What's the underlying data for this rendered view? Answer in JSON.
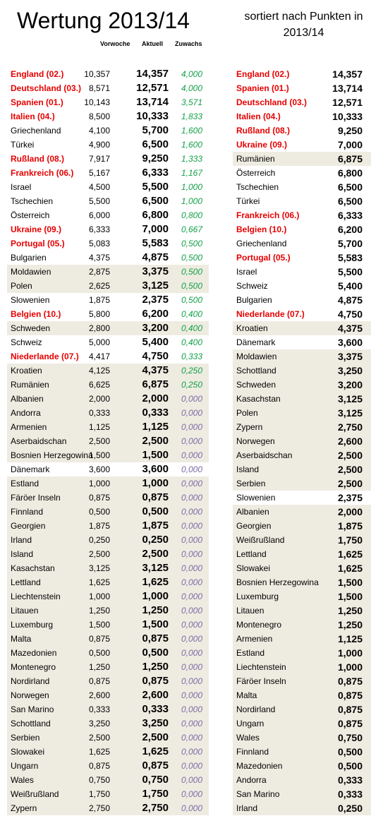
{
  "title": "Wertung 2013/14",
  "subtitle": "sortiert nach Punkten in 2013/14",
  "headers": {
    "prev": "Vorwoche",
    "curr": "Aktuell",
    "growth": "Zuwachs"
  },
  "left_rows": [
    {
      "name": "England (02.)",
      "prev": "10,357",
      "curr": "14,357",
      "growth": "4,000",
      "hl": true,
      "shade": false
    },
    {
      "name": "Deutschland (03.)",
      "prev": "8,571",
      "curr": "12,571",
      "growth": "4,000",
      "hl": true,
      "shade": false
    },
    {
      "name": "Spanien (01.)",
      "prev": "10,143",
      "curr": "13,714",
      "growth": "3,571",
      "hl": true,
      "shade": false
    },
    {
      "name": "Italien (04.)",
      "prev": "8,500",
      "curr": "10,333",
      "growth": "1,833",
      "hl": true,
      "shade": false
    },
    {
      "name": "Griechenland",
      "prev": "4,100",
      "curr": "5,700",
      "growth": "1,600",
      "hl": false,
      "shade": false
    },
    {
      "name": "Türkei",
      "prev": "4,900",
      "curr": "6,500",
      "growth": "1,600",
      "hl": false,
      "shade": false
    },
    {
      "name": "Rußland (08.)",
      "prev": "7,917",
      "curr": "9,250",
      "growth": "1,333",
      "hl": true,
      "shade": false
    },
    {
      "name": "Frankreich (06.)",
      "prev": "5,167",
      "curr": "6,333",
      "growth": "1,167",
      "hl": true,
      "shade": false
    },
    {
      "name": "Israel",
      "prev": "4,500",
      "curr": "5,500",
      "growth": "1,000",
      "hl": false,
      "shade": false
    },
    {
      "name": "Tschechien",
      "prev": "5,500",
      "curr": "6,500",
      "growth": "1,000",
      "hl": false,
      "shade": false
    },
    {
      "name": "Österreich",
      "prev": "6,000",
      "curr": "6,800",
      "growth": "0,800",
      "hl": false,
      "shade": false
    },
    {
      "name": "Ukraine (09.)",
      "prev": "6,333",
      "curr": "7,000",
      "growth": "0,667",
      "hl": true,
      "shade": false
    },
    {
      "name": "Portugal (05.)",
      "prev": "5,083",
      "curr": "5,583",
      "growth": "0,500",
      "hl": true,
      "shade": false
    },
    {
      "name": "Bulgarien",
      "prev": "4,375",
      "curr": "4,875",
      "growth": "0,500",
      "hl": false,
      "shade": false
    },
    {
      "name": "Moldawien",
      "prev": "2,875",
      "curr": "3,375",
      "growth": "0,500",
      "hl": false,
      "shade": true
    },
    {
      "name": "Polen",
      "prev": "2,625",
      "curr": "3,125",
      "growth": "0,500",
      "hl": false,
      "shade": true
    },
    {
      "name": "Slowenien",
      "prev": "1,875",
      "curr": "2,375",
      "growth": "0,500",
      "hl": false,
      "shade": false
    },
    {
      "name": "Belgien (10.)",
      "prev": "5,800",
      "curr": "6,200",
      "growth": "0,400",
      "hl": true,
      "shade": false
    },
    {
      "name": "Schweden",
      "prev": "2,800",
      "curr": "3,200",
      "growth": "0,400",
      "hl": false,
      "shade": true
    },
    {
      "name": "Schweiz",
      "prev": "5,000",
      "curr": "5,400",
      "growth": "0,400",
      "hl": false,
      "shade": false
    },
    {
      "name": "Niederlande (07.)",
      "prev": "4,417",
      "curr": "4,750",
      "growth": "0,333",
      "hl": true,
      "shade": false
    },
    {
      "name": "Kroatien",
      "prev": "4,125",
      "curr": "4,375",
      "growth": "0,250",
      "hl": false,
      "shade": true
    },
    {
      "name": "Rumänien",
      "prev": "6,625",
      "curr": "6,875",
      "growth": "0,250",
      "hl": false,
      "shade": true
    },
    {
      "name": "Albanien",
      "prev": "2,000",
      "curr": "2,000",
      "growth": "0,000",
      "hl": false,
      "shade": true
    },
    {
      "name": "Andorra",
      "prev": "0,333",
      "curr": "0,333",
      "growth": "0,000",
      "hl": false,
      "shade": true
    },
    {
      "name": "Armenien",
      "prev": "1,125",
      "curr": "1,125",
      "growth": "0,000",
      "hl": false,
      "shade": true
    },
    {
      "name": "Aserbaidschan",
      "prev": "2,500",
      "curr": "2,500",
      "growth": "0,000",
      "hl": false,
      "shade": true
    },
    {
      "name": "Bosnien Herzegowina",
      "prev": "1,500",
      "curr": "1,500",
      "growth": "0,000",
      "hl": false,
      "shade": true
    },
    {
      "name": "Dänemark",
      "prev": "3,600",
      "curr": "3,600",
      "growth": "0,000",
      "hl": false,
      "shade": false
    },
    {
      "name": "Estland",
      "prev": "1,000",
      "curr": "1,000",
      "growth": "0,000",
      "hl": false,
      "shade": true
    },
    {
      "name": "Färöer Inseln",
      "prev": "0,875",
      "curr": "0,875",
      "growth": "0,000",
      "hl": false,
      "shade": true
    },
    {
      "name": "Finnland",
      "prev": "0,500",
      "curr": "0,500",
      "growth": "0,000",
      "hl": false,
      "shade": true
    },
    {
      "name": "Georgien",
      "prev": "1,875",
      "curr": "1,875",
      "growth": "0,000",
      "hl": false,
      "shade": true
    },
    {
      "name": "Irland",
      "prev": "0,250",
      "curr": "0,250",
      "growth": "0,000",
      "hl": false,
      "shade": true
    },
    {
      "name": "Island",
      "prev": "2,500",
      "curr": "2,500",
      "growth": "0,000",
      "hl": false,
      "shade": true
    },
    {
      "name": "Kasachstan",
      "prev": "3,125",
      "curr": "3,125",
      "growth": "0,000",
      "hl": false,
      "shade": true
    },
    {
      "name": "Lettland",
      "prev": "1,625",
      "curr": "1,625",
      "growth": "0,000",
      "hl": false,
      "shade": true
    },
    {
      "name": "Liechtenstein",
      "prev": "1,000",
      "curr": "1,000",
      "growth": "0,000",
      "hl": false,
      "shade": true
    },
    {
      "name": "Litauen",
      "prev": "1,250",
      "curr": "1,250",
      "growth": "0,000",
      "hl": false,
      "shade": true
    },
    {
      "name": "Luxemburg",
      "prev": "1,500",
      "curr": "1,500",
      "growth": "0,000",
      "hl": false,
      "shade": true
    },
    {
      "name": "Malta",
      "prev": "0,875",
      "curr": "0,875",
      "growth": "0,000",
      "hl": false,
      "shade": true
    },
    {
      "name": "Mazedonien",
      "prev": "0,500",
      "curr": "0,500",
      "growth": "0,000",
      "hl": false,
      "shade": true
    },
    {
      "name": "Montenegro",
      "prev": "1,250",
      "curr": "1,250",
      "growth": "0,000",
      "hl": false,
      "shade": true
    },
    {
      "name": "Nordirland",
      "prev": "0,875",
      "curr": "0,875",
      "growth": "0,000",
      "hl": false,
      "shade": true
    },
    {
      "name": "Norwegen",
      "prev": "2,600",
      "curr": "2,600",
      "growth": "0,000",
      "hl": false,
      "shade": true
    },
    {
      "name": "San Marino",
      "prev": "0,333",
      "curr": "0,333",
      "growth": "0,000",
      "hl": false,
      "shade": true
    },
    {
      "name": "Schottland",
      "prev": "3,250",
      "curr": "3,250",
      "growth": "0,000",
      "hl": false,
      "shade": true
    },
    {
      "name": "Serbien",
      "prev": "2,500",
      "curr": "2,500",
      "growth": "0,000",
      "hl": false,
      "shade": true
    },
    {
      "name": "Slowakei",
      "prev": "1,625",
      "curr": "1,625",
      "growth": "0,000",
      "hl": false,
      "shade": true
    },
    {
      "name": "Ungarn",
      "prev": "0,875",
      "curr": "0,875",
      "growth": "0,000",
      "hl": false,
      "shade": true
    },
    {
      "name": "Wales",
      "prev": "0,750",
      "curr": "0,750",
      "growth": "0,000",
      "hl": false,
      "shade": true
    },
    {
      "name": "Weißrußland",
      "prev": "1,750",
      "curr": "1,750",
      "growth": "0,000",
      "hl": false,
      "shade": true
    },
    {
      "name": "Zypern",
      "prev": "2,750",
      "curr": "2,750",
      "growth": "0,000",
      "hl": false,
      "shade": true
    }
  ],
  "right_rows": [
    {
      "name": "England (02.)",
      "curr": "14,357",
      "hl": true,
      "shade": false
    },
    {
      "name": "Spanien (01.)",
      "curr": "13,714",
      "hl": true,
      "shade": false
    },
    {
      "name": "Deutschland (03.)",
      "curr": "12,571",
      "hl": true,
      "shade": false
    },
    {
      "name": "Italien (04.)",
      "curr": "10,333",
      "hl": true,
      "shade": false
    },
    {
      "name": "Rußland (08.)",
      "curr": "9,250",
      "hl": true,
      "shade": false
    },
    {
      "name": "Ukraine (09.)",
      "curr": "7,000",
      "hl": true,
      "shade": false
    },
    {
      "name": "Rumänien",
      "curr": "6,875",
      "hl": false,
      "shade": true
    },
    {
      "name": "Österreich",
      "curr": "6,800",
      "hl": false,
      "shade": false
    },
    {
      "name": "Tschechien",
      "curr": "6,500",
      "hl": false,
      "shade": false
    },
    {
      "name": "Türkei",
      "curr": "6,500",
      "hl": false,
      "shade": false
    },
    {
      "name": "Frankreich (06.)",
      "curr": "6,333",
      "hl": true,
      "shade": false
    },
    {
      "name": "Belgien (10.)",
      "curr": "6,200",
      "hl": true,
      "shade": false
    },
    {
      "name": "Griechenland",
      "curr": "5,700",
      "hl": false,
      "shade": false
    },
    {
      "name": "Portugal (05.)",
      "curr": "5,583",
      "hl": true,
      "shade": false
    },
    {
      "name": "Israel",
      "curr": "5,500",
      "hl": false,
      "shade": false
    },
    {
      "name": "Schweiz",
      "curr": "5,400",
      "hl": false,
      "shade": false
    },
    {
      "name": "Bulgarien",
      "curr": "4,875",
      "hl": false,
      "shade": false
    },
    {
      "name": "Niederlande (07.)",
      "curr": "4,750",
      "hl": true,
      "shade": false
    },
    {
      "name": "Kroatien",
      "curr": "4,375",
      "hl": false,
      "shade": true
    },
    {
      "name": "Dänemark",
      "curr": "3,600",
      "hl": false,
      "shade": false
    },
    {
      "name": "Moldawien",
      "curr": "3,375",
      "hl": false,
      "shade": true
    },
    {
      "name": "Schottland",
      "curr": "3,250",
      "hl": false,
      "shade": true
    },
    {
      "name": "Schweden",
      "curr": "3,200",
      "hl": false,
      "shade": true
    },
    {
      "name": "Kasachstan",
      "curr": "3,125",
      "hl": false,
      "shade": true
    },
    {
      "name": "Polen",
      "curr": "3,125",
      "hl": false,
      "shade": true
    },
    {
      "name": "Zypern",
      "curr": "2,750",
      "hl": false,
      "shade": true
    },
    {
      "name": "Norwegen",
      "curr": "2,600",
      "hl": false,
      "shade": true
    },
    {
      "name": "Aserbaidschan",
      "curr": "2,500",
      "hl": false,
      "shade": true
    },
    {
      "name": "Island",
      "curr": "2,500",
      "hl": false,
      "shade": true
    },
    {
      "name": "Serbien",
      "curr": "2,500",
      "hl": false,
      "shade": true
    },
    {
      "name": "Slowenien",
      "curr": "2,375",
      "hl": false,
      "shade": false
    },
    {
      "name": "Albanien",
      "curr": "2,000",
      "hl": false,
      "shade": true
    },
    {
      "name": "Georgien",
      "curr": "1,875",
      "hl": false,
      "shade": true
    },
    {
      "name": "Weißrußland",
      "curr": "1,750",
      "hl": false,
      "shade": true
    },
    {
      "name": "Lettland",
      "curr": "1,625",
      "hl": false,
      "shade": true
    },
    {
      "name": "Slowakei",
      "curr": "1,625",
      "hl": false,
      "shade": true
    },
    {
      "name": "Bosnien Herzegowina",
      "curr": "1,500",
      "hl": false,
      "shade": true
    },
    {
      "name": "Luxemburg",
      "curr": "1,500",
      "hl": false,
      "shade": true
    },
    {
      "name": "Litauen",
      "curr": "1,250",
      "hl": false,
      "shade": true
    },
    {
      "name": "Montenegro",
      "curr": "1,250",
      "hl": false,
      "shade": true
    },
    {
      "name": "Armenien",
      "curr": "1,125",
      "hl": false,
      "shade": true
    },
    {
      "name": "Estland",
      "curr": "1,000",
      "hl": false,
      "shade": true
    },
    {
      "name": "Liechtenstein",
      "curr": "1,000",
      "hl": false,
      "shade": true
    },
    {
      "name": "Färöer Inseln",
      "curr": "0,875",
      "hl": false,
      "shade": true
    },
    {
      "name": "Malta",
      "curr": "0,875",
      "hl": false,
      "shade": true
    },
    {
      "name": "Nordirland",
      "curr": "0,875",
      "hl": false,
      "shade": true
    },
    {
      "name": "Ungarn",
      "curr": "0,875",
      "hl": false,
      "shade": true
    },
    {
      "name": "Wales",
      "curr": "0,750",
      "hl": false,
      "shade": true
    },
    {
      "name": "Finnland",
      "curr": "0,500",
      "hl": false,
      "shade": true
    },
    {
      "name": "Mazedonien",
      "curr": "0,500",
      "hl": false,
      "shade": true
    },
    {
      "name": "Andorra",
      "curr": "0,333",
      "hl": false,
      "shade": true
    },
    {
      "name": "San Marino",
      "curr": "0,333",
      "hl": false,
      "shade": true
    },
    {
      "name": "Irland",
      "curr": "0,250",
      "hl": false,
      "shade": true
    }
  ]
}
